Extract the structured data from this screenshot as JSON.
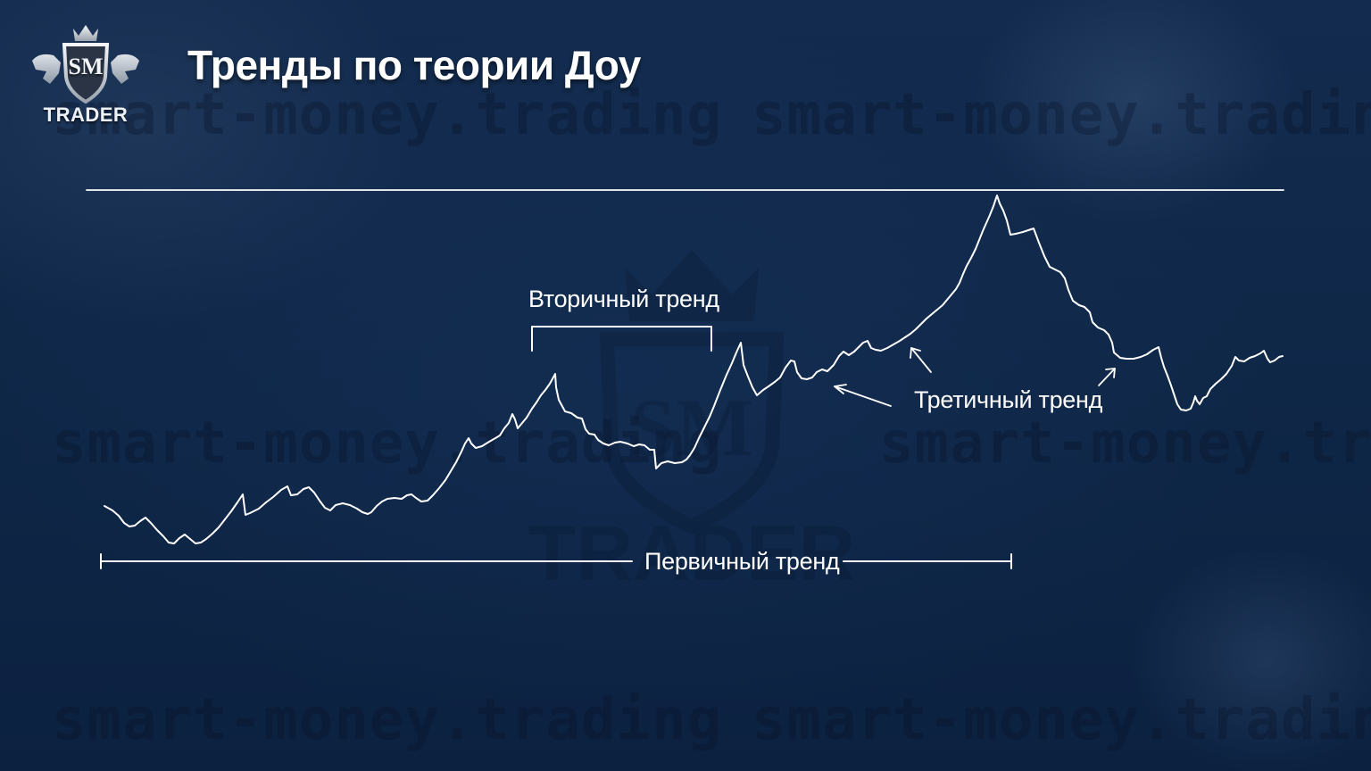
{
  "header": {
    "title": "Тренды по теории Доу",
    "logo": {
      "monogram": "SM",
      "name": "TRADER"
    }
  },
  "watermark": {
    "text": "smart-money.trading"
  },
  "diagram": {
    "labels": {
      "secondary": "Вторичный тренд",
      "tertiary": "Третичный тренд",
      "primary": "Первичный тренд"
    },
    "line_color": "#ffffff",
    "background_color": "#0f2647"
  }
}
